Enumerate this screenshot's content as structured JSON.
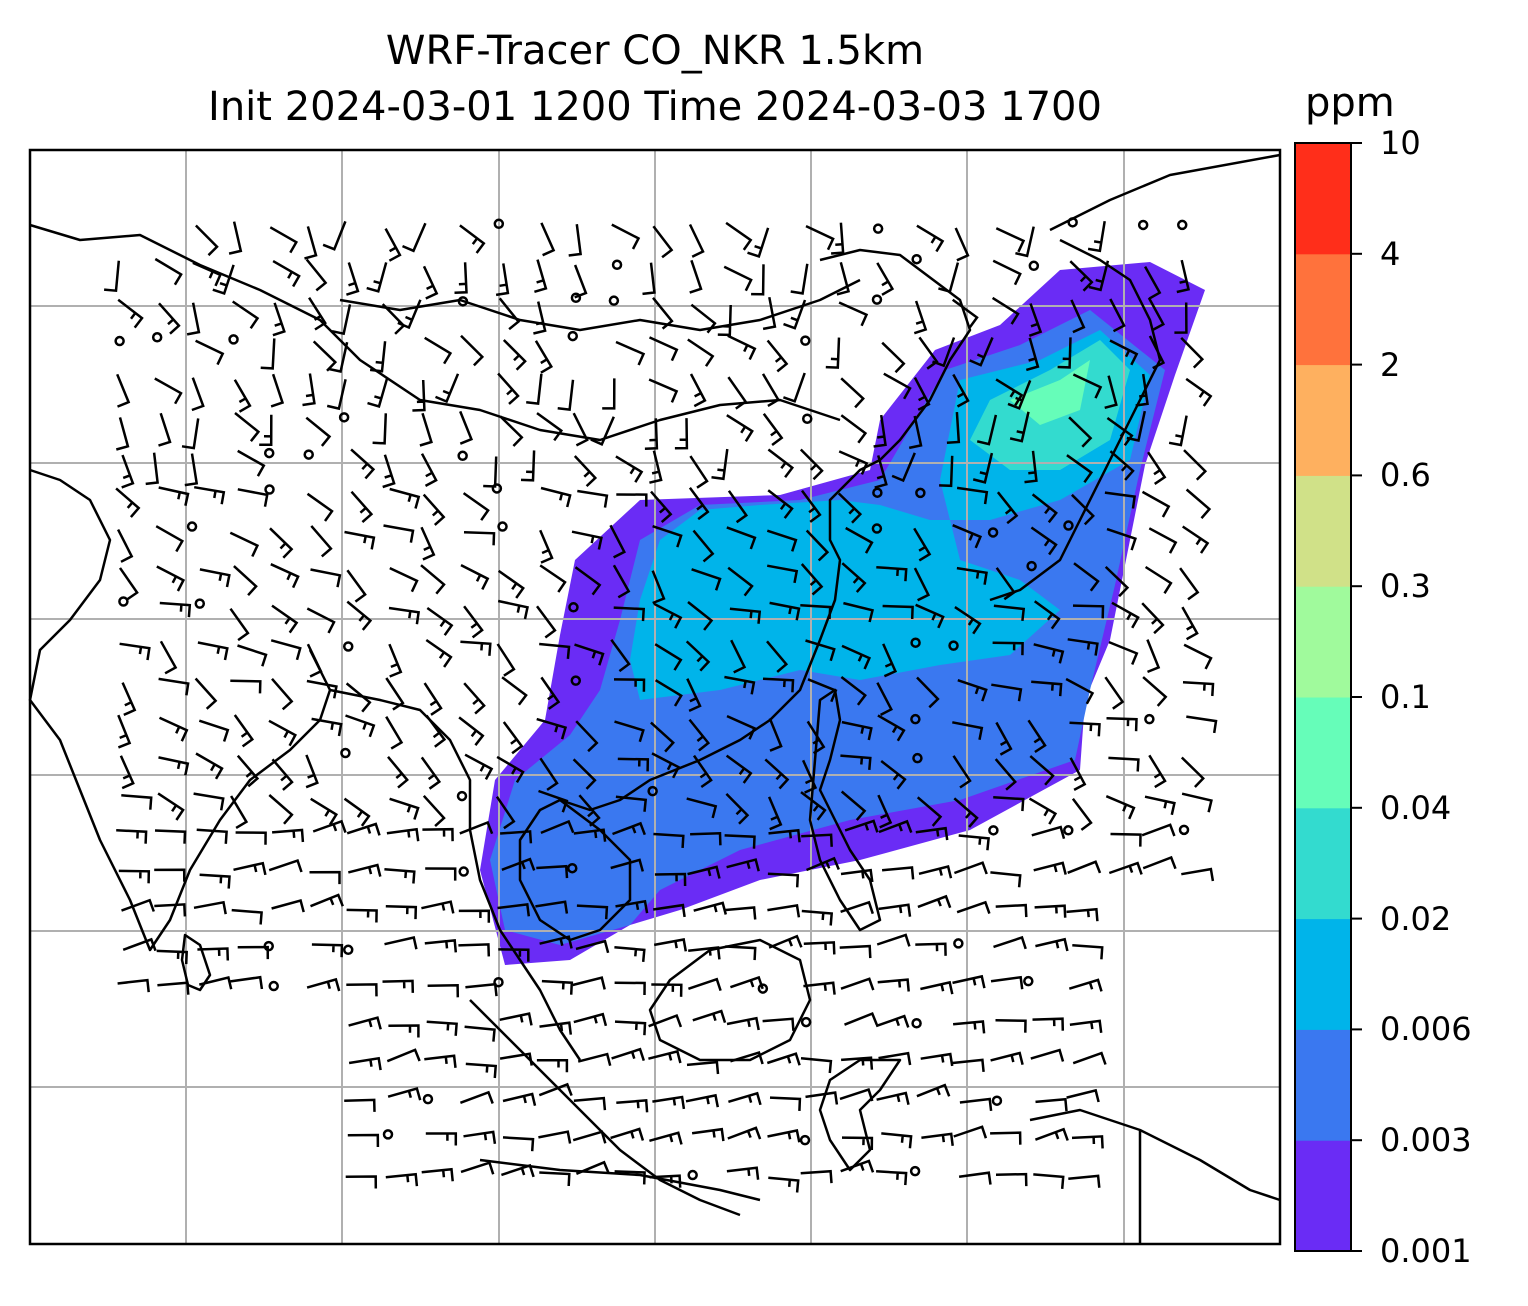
{
  "title": {
    "line1": "WRF-Tracer CO_NKR 1.5km",
    "line2": "Init 2024-03-01 1200 Time 2024-03-03 1700"
  },
  "colorbar": {
    "unit": "ppm",
    "ticks": [
      "0.001",
      "0.003",
      "0.006",
      "0.02",
      "0.04",
      "0.1",
      "0.3",
      "0.6",
      "2",
      "4",
      "10"
    ],
    "colors": [
      "#6a2cf5",
      "#3a78f0",
      "#00b4ea",
      "#33dbcf",
      "#66fdb9",
      "#a0fa9c",
      "#d0e188",
      "#feb05f",
      "#ff723c",
      "#ff2e1a"
    ]
  },
  "map": {
    "gridlines": true,
    "grid_color": "#b0b0b0",
    "coastline_color": "#000000",
    "barb_color": "#000000"
  }
}
